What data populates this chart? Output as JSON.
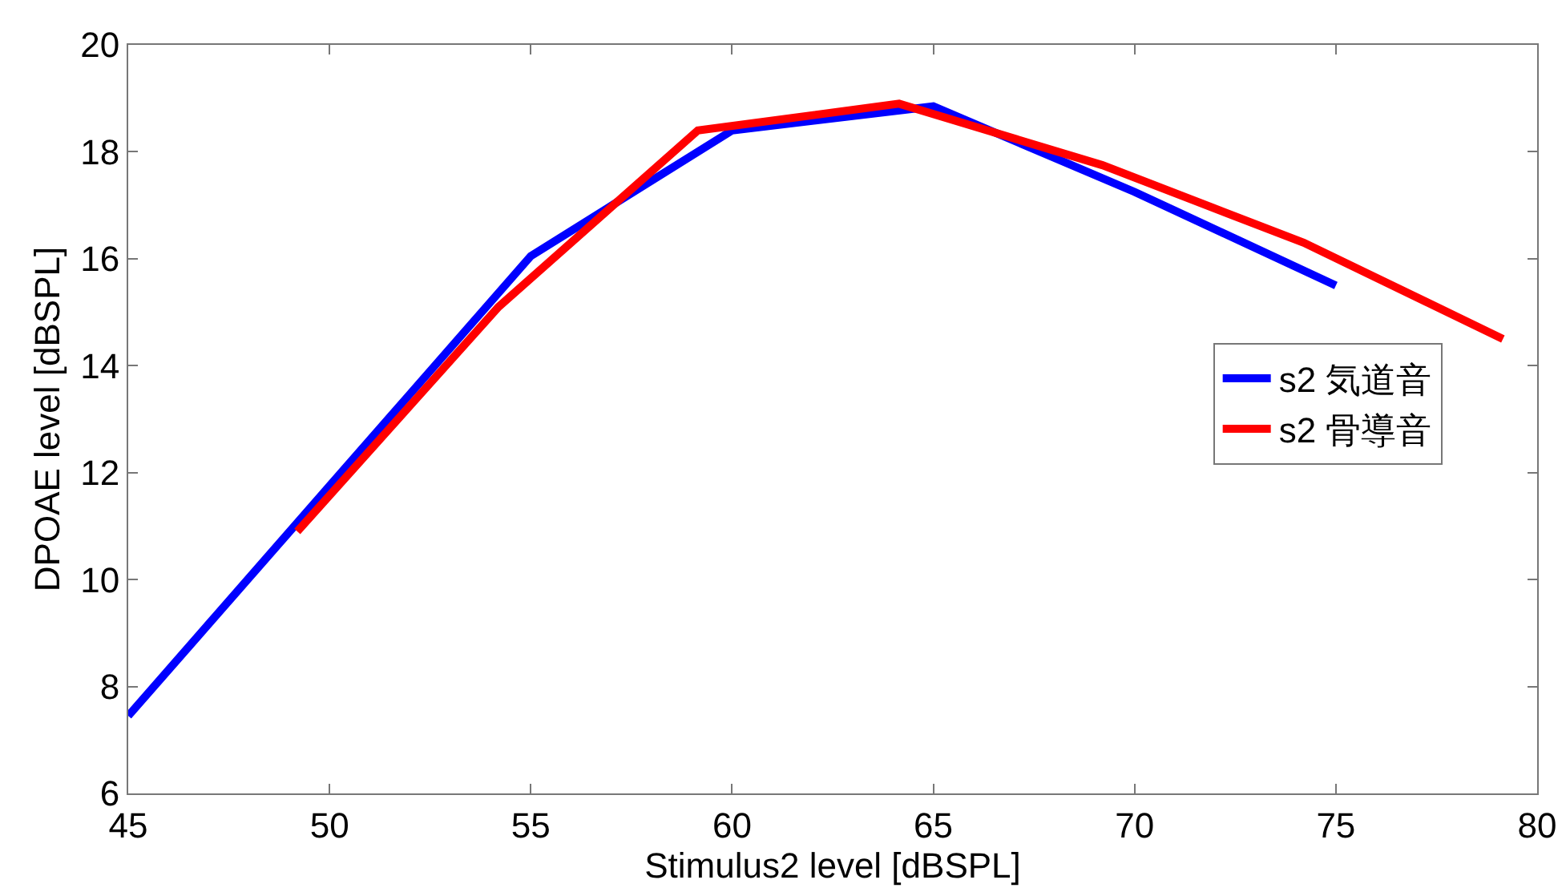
{
  "chart_data": {
    "type": "line",
    "xlabel": "Stimulus2 level [dBSPL]",
    "ylabel": "DPOAE level [dBSPL]",
    "xlim": [
      45,
      80
    ],
    "xticks": [
      45,
      50,
      55,
      60,
      65,
      70,
      75,
      80
    ],
    "ylim": [
      6,
      20
    ],
    "yticks": [
      6,
      8,
      10,
      12,
      14,
      16,
      18,
      20
    ],
    "grid": false,
    "legend": "right",
    "line_style": "solid",
    "marker": "none",
    "series": [
      {
        "name": "s2 気道音",
        "color": "#0000ff",
        "x": [
          45,
          50,
          55,
          60,
          65,
          70,
          75
        ],
        "values": [
          7.45,
          11.75,
          16.05,
          18.4,
          18.85,
          17.25,
          15.5
        ]
      },
      {
        "name": "s2 骨導音",
        "color": "#ff0000",
        "x": [
          49.2,
          54.2,
          59.15,
          64.15,
          69.2,
          74.2,
          79.15
        ],
        "values": [
          10.9,
          15.1,
          18.4,
          18.9,
          17.75,
          16.3,
          14.5
        ]
      }
    ]
  }
}
